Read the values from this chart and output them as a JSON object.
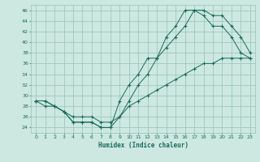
{
  "title": "",
  "xlabel": "Humidex (Indice chaleur)",
  "ylabel": "",
  "bg_color": "#cce8e0",
  "grid_color": "#a0c8bc",
  "line_color": "#1a6b5a",
  "xlim": [
    -0.5,
    23.5
  ],
  "ylim": [
    23,
    47
  ],
  "xticks": [
    0,
    1,
    2,
    3,
    4,
    5,
    6,
    7,
    8,
    9,
    10,
    11,
    12,
    13,
    14,
    15,
    16,
    17,
    18,
    19,
    20,
    21,
    22,
    23
  ],
  "yticks": [
    24,
    26,
    28,
    30,
    32,
    34,
    36,
    38,
    40,
    42,
    44,
    46
  ],
  "line1_x": [
    0,
    1,
    2,
    3,
    4,
    5,
    6,
    7,
    8,
    9,
    10,
    11,
    12,
    13,
    14,
    15,
    16,
    17,
    18,
    19,
    20,
    21,
    22,
    23
  ],
  "line1_y": [
    29,
    29,
    28,
    27,
    25,
    25,
    25,
    24,
    24,
    26,
    29,
    32,
    34,
    37,
    39,
    41,
    43,
    46,
    46,
    45,
    45,
    43,
    41,
    38
  ],
  "line2_x": [
    0,
    1,
    2,
    3,
    4,
    5,
    6,
    7,
    8,
    9,
    10,
    11,
    12,
    13,
    14,
    15,
    16,
    17,
    18,
    19,
    20,
    21,
    22,
    23
  ],
  "line2_y": [
    29,
    29,
    28,
    27,
    25,
    25,
    25,
    24,
    24,
    29,
    32,
    34,
    37,
    37,
    41,
    43,
    46,
    46,
    45,
    43,
    43,
    41,
    38,
    37
  ],
  "line3_x": [
    0,
    1,
    2,
    3,
    4,
    5,
    6,
    7,
    8,
    9,
    10,
    11,
    12,
    13,
    14,
    15,
    16,
    17,
    18,
    19,
    20,
    21,
    22,
    23
  ],
  "line3_y": [
    29,
    28,
    28,
    27,
    26,
    26,
    26,
    25,
    25,
    26,
    28,
    29,
    30,
    31,
    32,
    33,
    34,
    35,
    36,
    36,
    37,
    37,
    37,
    37
  ]
}
